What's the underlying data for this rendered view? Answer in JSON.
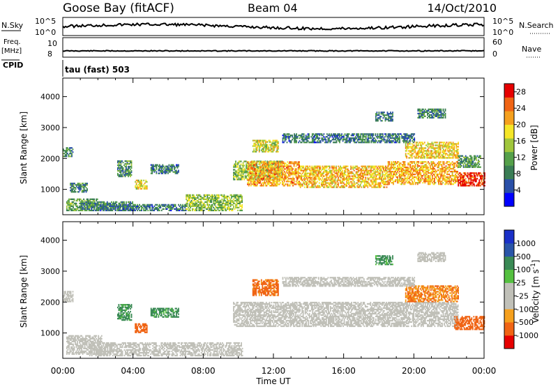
{
  "header": {
    "station": "Goose Bay (fitACF)",
    "beam": "Beam 04",
    "date": "14/Oct/2010"
  },
  "panel_labels": {
    "nsky": "N.Sky",
    "nsearch": "N.Search",
    "freq": "Freq.",
    "freq_unit": "[MHz]",
    "nave": "Nave",
    "cpid": "CPID",
    "cpid_text": "tau (fast) 503",
    "nsky_ticks": [
      "10^5",
      "10^0"
    ],
    "freq_ticks": [
      "10",
      "8"
    ],
    "nave_ticks": [
      "60",
      "0"
    ]
  },
  "colors": {
    "power_scale": [
      "#0000ff",
      "#2a50a8",
      "#3a7d55",
      "#55a04a",
      "#a0c63c",
      "#f5e628",
      "#f5a01e",
      "#f06414",
      "#e60000"
    ],
    "velocity_scale": [
      "#e60000",
      "#f06414",
      "#f5a01e",
      "#c0c0b8",
      "#c0c0b8",
      "#55c040",
      "#3a8a55",
      "#2a55a8",
      "#1a30c8"
    ],
    "ground_scatter": "#c0c0b8"
  },
  "chart_data": [
    {
      "type": "heatmap",
      "name": "power",
      "xlabel": "Time UT",
      "ylabel": "Slant Range [km]",
      "xticks": [
        "00:00",
        "04:00",
        "08:00",
        "12:00",
        "16:00",
        "20:00",
        "00:00"
      ],
      "xlim_hours": [
        0,
        24
      ],
      "yticks": [
        1000,
        2000,
        3000,
        4000
      ],
      "ylim_km": [
        180,
        4600
      ],
      "colorbar_label": "Power [dB]",
      "colorbar_ticks": [
        4,
        8,
        12,
        16,
        20,
        24,
        28
      ],
      "clim": [
        0,
        30
      ],
      "regions": [
        {
          "t0": 0.0,
          "t1": 0.6,
          "r0": 2050,
          "r1": 2350,
          "level": 10
        },
        {
          "t0": 0.2,
          "t1": 2.0,
          "r0": 300,
          "r1": 700,
          "level": 12
        },
        {
          "t0": 1.0,
          "t1": 4.0,
          "r0": 300,
          "r1": 600,
          "level": 9
        },
        {
          "t0": 2.0,
          "t1": 7.0,
          "r0": 300,
          "r1": 500,
          "level": 8
        },
        {
          "t0": 7.0,
          "t1": 10.2,
          "r0": 300,
          "r1": 800,
          "level": 14
        },
        {
          "t0": 3.1,
          "t1": 3.9,
          "r0": 1400,
          "r1": 1900,
          "level": 10
        },
        {
          "t0": 4.1,
          "t1": 4.8,
          "r0": 1000,
          "r1": 1300,
          "level": 18
        },
        {
          "t0": 5.0,
          "t1": 6.6,
          "r0": 1500,
          "r1": 1800,
          "level": 8
        },
        {
          "t0": 9.7,
          "t1": 12.5,
          "r0": 1300,
          "r1": 1900,
          "level": 14
        },
        {
          "t0": 10.5,
          "t1": 13.5,
          "r0": 1100,
          "r1": 1900,
          "level": 22
        },
        {
          "t0": 13.5,
          "t1": 18.5,
          "r0": 1050,
          "r1": 1750,
          "level": 20
        },
        {
          "t0": 18.5,
          "t1": 22.5,
          "r0": 1150,
          "r1": 1900,
          "level": 21
        },
        {
          "t0": 22.5,
          "t1": 24.0,
          "r0": 1100,
          "r1": 1550,
          "level": 27
        },
        {
          "t0": 10.8,
          "t1": 12.3,
          "r0": 2200,
          "r1": 2600,
          "level": 17
        },
        {
          "t0": 19.5,
          "t1": 22.5,
          "r0": 2000,
          "r1": 2500,
          "level": 19
        },
        {
          "t0": 12.5,
          "t1": 20.0,
          "r0": 2500,
          "r1": 2800,
          "level": 8
        },
        {
          "t0": 17.8,
          "t1": 18.8,
          "r0": 3200,
          "r1": 3500,
          "level": 8
        },
        {
          "t0": 20.2,
          "t1": 21.8,
          "r0": 3300,
          "r1": 3600,
          "level": 9
        },
        {
          "t0": 0.4,
          "t1": 1.4,
          "r0": 900,
          "r1": 1200,
          "level": 9
        },
        {
          "t0": 22.5,
          "t1": 23.8,
          "r0": 1700,
          "r1": 2100,
          "level": 11
        }
      ]
    },
    {
      "type": "heatmap",
      "name": "velocity",
      "xlabel": "Time UT",
      "ylabel": "Slant Range [km]",
      "xticks": [
        "00:00",
        "04:00",
        "08:00",
        "12:00",
        "16:00",
        "20:00",
        "00:00"
      ],
      "xlim_hours": [
        0,
        24
      ],
      "yticks": [
        1000,
        2000,
        3000,
        4000
      ],
      "ylim_km": [
        180,
        4600
      ],
      "colorbar_label": "Velocity [m s^-1]",
      "colorbar_ticks": [
        "1000",
        "500",
        "100",
        "25",
        "-25",
        "-100",
        "-500",
        "-1000"
      ],
      "regions": [
        {
          "t0": 0.0,
          "t1": 0.6,
          "r0": 2000,
          "r1": 2350,
          "vel": 0
        },
        {
          "t0": 0.2,
          "t1": 2.2,
          "r0": 300,
          "r1": 900,
          "vel": 0
        },
        {
          "t0": 1.5,
          "t1": 10.2,
          "r0": 250,
          "r1": 700,
          "vel": 0
        },
        {
          "t0": 3.1,
          "t1": 3.9,
          "r0": 1400,
          "r1": 1900,
          "vel": 150
        },
        {
          "t0": 4.1,
          "t1": 4.8,
          "r0": 1000,
          "r1": 1300,
          "vel": -200
        },
        {
          "t0": 5.0,
          "t1": 6.6,
          "r0": 1500,
          "r1": 1800,
          "vel": 150
        },
        {
          "t0": 9.7,
          "t1": 22.5,
          "r0": 1200,
          "r1": 2000,
          "vel": 0
        },
        {
          "t0": 10.8,
          "t1": 12.3,
          "r0": 2200,
          "r1": 2700,
          "vel": -150
        },
        {
          "t0": 19.5,
          "t1": 22.5,
          "r0": 2000,
          "r1": 2500,
          "vel": -100
        },
        {
          "t0": 22.3,
          "t1": 24.0,
          "r0": 1100,
          "r1": 1550,
          "vel": -200
        },
        {
          "t0": 12.5,
          "t1": 20.0,
          "r0": 2500,
          "r1": 2800,
          "vel": 0
        },
        {
          "t0": 17.8,
          "t1": 18.8,
          "r0": 3200,
          "r1": 3500,
          "vel": 150
        },
        {
          "t0": 20.2,
          "t1": 21.8,
          "r0": 3300,
          "r1": 3600,
          "vel": 0
        }
      ]
    }
  ]
}
